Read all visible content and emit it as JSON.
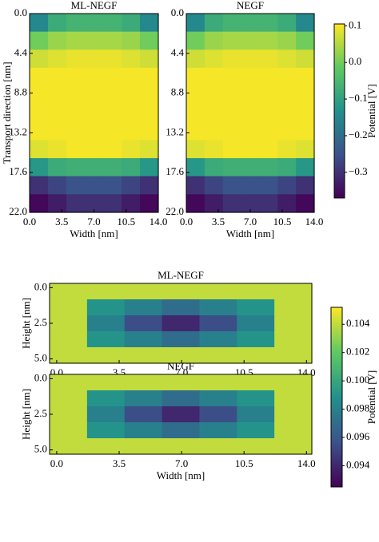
{
  "chart_data": [
    {
      "type": "heatmap",
      "title": "ML-NEGF",
      "xlabel": "Width [nm]",
      "ylabel": "Transport direction [nm]",
      "xlim": [
        0,
        14
      ],
      "ylim": [
        22,
        0
      ],
      "xticks": [
        {
          "value": 0,
          "label": "0.0"
        },
        3.5,
        {
          "value": 7,
          "label": "7.0"
        },
        10.5,
        {
          "value": 14,
          "label": "14.0"
        }
      ],
      "yticks": [
        {
          "value": 0,
          "label": "0.0"
        },
        4.4,
        8.8,
        13.2,
        17.6,
        {
          "value": 22,
          "label": "22.0"
        }
      ],
      "colormap": "viridis",
      "clim": [
        -0.37,
        0.105
      ],
      "z": [
        [
          -0.15,
          -0.08,
          -0.06,
          -0.06,
          -0.06,
          -0.08,
          -0.15
        ],
        [
          0.0,
          0.03,
          0.04,
          0.04,
          0.04,
          0.03,
          0.0
        ],
        [
          0.07,
          0.08,
          0.09,
          0.09,
          0.09,
          0.08,
          0.07
        ],
        [
          0.1,
          0.1,
          0.1,
          0.1,
          0.1,
          0.1,
          0.1
        ],
        [
          0.1,
          0.1,
          0.1,
          0.1,
          0.1,
          0.1,
          0.1
        ],
        [
          0.1,
          0.1,
          0.1,
          0.1,
          0.1,
          0.1,
          0.1
        ],
        [
          0.1,
          0.1,
          0.1,
          0.1,
          0.1,
          0.1,
          0.1
        ],
        [
          0.08,
          0.09,
          0.1,
          0.1,
          0.1,
          0.09,
          0.08
        ],
        [
          -0.12,
          -0.08,
          -0.07,
          -0.07,
          -0.07,
          -0.08,
          -0.12
        ],
        [
          -0.3,
          -0.27,
          -0.25,
          -0.25,
          -0.25,
          -0.27,
          -0.3
        ],
        [
          -0.36,
          -0.33,
          -0.3,
          -0.3,
          -0.3,
          -0.33,
          -0.36
        ]
      ]
    },
    {
      "type": "heatmap",
      "title": "NEGF",
      "xlabel": "Width [nm]",
      "xlim": [
        0,
        14
      ],
      "ylim": [
        22,
        0
      ],
      "xticks": [
        {
          "value": 0,
          "label": "0.0"
        },
        3.5,
        {
          "value": 7,
          "label": "7.0"
        },
        10.5,
        {
          "value": 14,
          "label": "14.0"
        }
      ],
      "yticks": [
        {
          "value": 0,
          "label": "0.0"
        },
        4.4,
        8.8,
        13.2,
        17.6,
        {
          "value": 22,
          "label": "22.0"
        }
      ],
      "colormap": "viridis",
      "clim": [
        -0.37,
        0.105
      ],
      "colorbar_label": "Potential [V]",
      "cticks": [
        0.1,
        {
          "value": 0,
          "label": "0.0"
        },
        {
          "value": -0.1,
          "label": "−0.1"
        },
        {
          "value": -0.2,
          "label": "−0.2"
        },
        {
          "value": -0.3,
          "label": "−0.3"
        }
      ],
      "z": [
        [
          -0.15,
          -0.08,
          -0.06,
          -0.06,
          -0.06,
          -0.08,
          -0.15
        ],
        [
          0.0,
          0.03,
          0.04,
          0.04,
          0.04,
          0.03,
          0.0
        ],
        [
          0.07,
          0.08,
          0.09,
          0.09,
          0.09,
          0.08,
          0.07
        ],
        [
          0.1,
          0.1,
          0.1,
          0.1,
          0.1,
          0.1,
          0.1
        ],
        [
          0.1,
          0.1,
          0.1,
          0.1,
          0.1,
          0.1,
          0.1
        ],
        [
          0.1,
          0.1,
          0.1,
          0.1,
          0.1,
          0.1,
          0.1
        ],
        [
          0.1,
          0.1,
          0.1,
          0.1,
          0.1,
          0.1,
          0.1
        ],
        [
          0.08,
          0.09,
          0.1,
          0.1,
          0.1,
          0.09,
          0.08
        ],
        [
          -0.12,
          -0.08,
          -0.07,
          -0.07,
          -0.07,
          -0.08,
          -0.12
        ],
        [
          -0.3,
          -0.27,
          -0.25,
          -0.25,
          -0.25,
          -0.27,
          -0.3
        ],
        [
          -0.36,
          -0.33,
          -0.3,
          -0.3,
          -0.3,
          -0.33,
          -0.36
        ]
      ]
    },
    {
      "type": "heatmap",
      "title": "ML-NEGF",
      "ylabel": "Height [nm]",
      "xlim": [
        -0.4,
        14.3
      ],
      "ylim": [
        5.3,
        -0.3
      ],
      "xticks": [
        {
          "value": 0,
          "label": "0.0"
        },
        3.5,
        {
          "value": 7,
          "label": "7.0"
        },
        10.5,
        {
          "value": 14,
          "label": "14.0"
        }
      ],
      "yticks": [
        {
          "value": 0,
          "label": "0.0"
        },
        2.5,
        {
          "value": 5,
          "label": "5.0"
        }
      ],
      "colormap": "viridis",
      "clim": [
        0.0925,
        0.1052
      ],
      "colorbar_label": "Potential [V]",
      "cticks": [
        0.094,
        0.096,
        0.098,
        {
          "value": 0.1,
          "label": "0.100"
        },
        0.102,
        0.104
      ],
      "z": [
        [
          0.104,
          0.104,
          0.104,
          0.104,
          0.104,
          0.104,
          0.104
        ],
        [
          0.104,
          0.099,
          0.098,
          0.097,
          0.098,
          0.099,
          0.104
        ],
        [
          0.104,
          0.098,
          0.0955,
          0.094,
          0.0955,
          0.098,
          0.104
        ],
        [
          0.104,
          0.099,
          0.098,
          0.097,
          0.098,
          0.099,
          0.104
        ],
        [
          0.104,
          0.104,
          0.104,
          0.104,
          0.104,
          0.104,
          0.104
        ]
      ]
    },
    {
      "type": "heatmap",
      "title": "NEGF",
      "xlabel": "Width [nm]",
      "ylabel": "Height [nm]",
      "xlim": [
        -0.4,
        14.3
      ],
      "ylim": [
        5.3,
        -0.3
      ],
      "xticks": [
        {
          "value": 0,
          "label": "0.0"
        },
        3.5,
        {
          "value": 7,
          "label": "7.0"
        },
        10.5,
        {
          "value": 14,
          "label": "14.0"
        }
      ],
      "yticks": [
        {
          "value": 0,
          "label": "0.0"
        },
        2.5,
        {
          "value": 5,
          "label": "5.0"
        }
      ],
      "colormap": "viridis",
      "clim": [
        0.0925,
        0.1052
      ],
      "z": [
        [
          0.104,
          0.104,
          0.104,
          0.104,
          0.104,
          0.104,
          0.104
        ],
        [
          0.104,
          0.099,
          0.098,
          0.097,
          0.098,
          0.099,
          0.104
        ],
        [
          0.104,
          0.098,
          0.0955,
          0.094,
          0.0955,
          0.098,
          0.104
        ],
        [
          0.104,
          0.099,
          0.098,
          0.097,
          0.098,
          0.099,
          0.104
        ],
        [
          0.104,
          0.104,
          0.104,
          0.104,
          0.104,
          0.104,
          0.104
        ]
      ]
    }
  ]
}
